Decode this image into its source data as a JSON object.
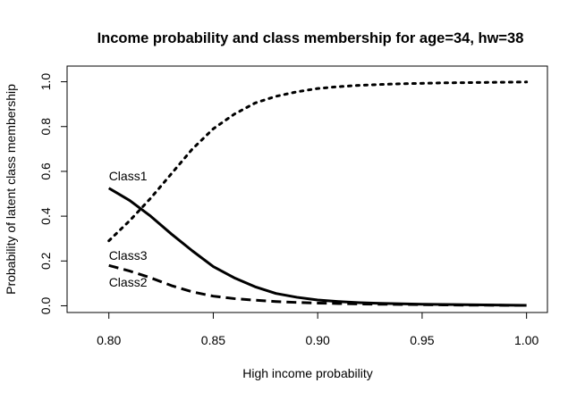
{
  "chart_data": {
    "type": "line",
    "title": "Income probability and class membership for age=34, hw=38",
    "xlabel": "High income probability",
    "ylabel": "Probability of latent class membership",
    "xlim": [
      0.78,
      1.01
    ],
    "ylim": [
      -0.03,
      1.07
    ],
    "x_ticks": [
      0.8,
      0.85,
      0.9,
      0.95,
      1.0
    ],
    "x_tick_labels": [
      "0.80",
      "0.85",
      "0.90",
      "0.95",
      "1.00"
    ],
    "y_ticks": [
      0.0,
      0.2,
      0.4,
      0.6,
      0.8,
      1.0
    ],
    "y_tick_labels": [
      "0.0",
      "0.2",
      "0.4",
      "0.6",
      "0.8",
      "1.0"
    ],
    "grid": false,
    "legend": "none",
    "series": [
      {
        "name": "Class1",
        "line_style": "solid",
        "label_at": [
          0.8,
          0.58
        ],
        "x": [
          0.8,
          0.81,
          0.82,
          0.83,
          0.84,
          0.85,
          0.86,
          0.87,
          0.88,
          0.89,
          0.9,
          0.91,
          0.92,
          0.93,
          0.94,
          0.95,
          0.96,
          0.97,
          0.98,
          0.99,
          1.0
        ],
        "y": [
          0.525,
          0.47,
          0.4,
          0.32,
          0.245,
          0.175,
          0.125,
          0.085,
          0.055,
          0.038,
          0.026,
          0.019,
          0.014,
          0.011,
          0.009,
          0.007,
          0.006,
          0.005,
          0.004,
          0.003,
          0.002
        ]
      },
      {
        "name": "Class2",
        "line_style": "dashed",
        "label_at": [
          0.8,
          0.105
        ],
        "x": [
          0.8,
          0.81,
          0.82,
          0.83,
          0.84,
          0.85,
          0.86,
          0.87,
          0.88,
          0.89,
          0.9,
          0.91,
          0.92,
          0.93,
          0.94,
          0.95,
          0.96,
          0.97,
          0.98,
          0.99,
          1.0
        ],
        "y": [
          0.18,
          0.155,
          0.125,
          0.09,
          0.062,
          0.043,
          0.032,
          0.025,
          0.019,
          0.015,
          0.012,
          0.01,
          0.008,
          0.007,
          0.006,
          0.005,
          0.004,
          0.003,
          0.003,
          0.002,
          0.002
        ]
      },
      {
        "name": "Class3",
        "line_style": "dotted",
        "label_at": [
          0.8,
          0.225
        ],
        "x": [
          0.8,
          0.81,
          0.82,
          0.83,
          0.84,
          0.85,
          0.86,
          0.87,
          0.88,
          0.89,
          0.9,
          0.91,
          0.92,
          0.93,
          0.94,
          0.95,
          0.96,
          0.97,
          0.98,
          0.99,
          1.0
        ],
        "y": [
          0.29,
          0.38,
          0.48,
          0.59,
          0.7,
          0.79,
          0.855,
          0.905,
          0.935,
          0.955,
          0.97,
          0.978,
          0.984,
          0.988,
          0.991,
          0.993,
          0.995,
          0.996,
          0.997,
          0.998,
          0.999
        ]
      }
    ]
  }
}
